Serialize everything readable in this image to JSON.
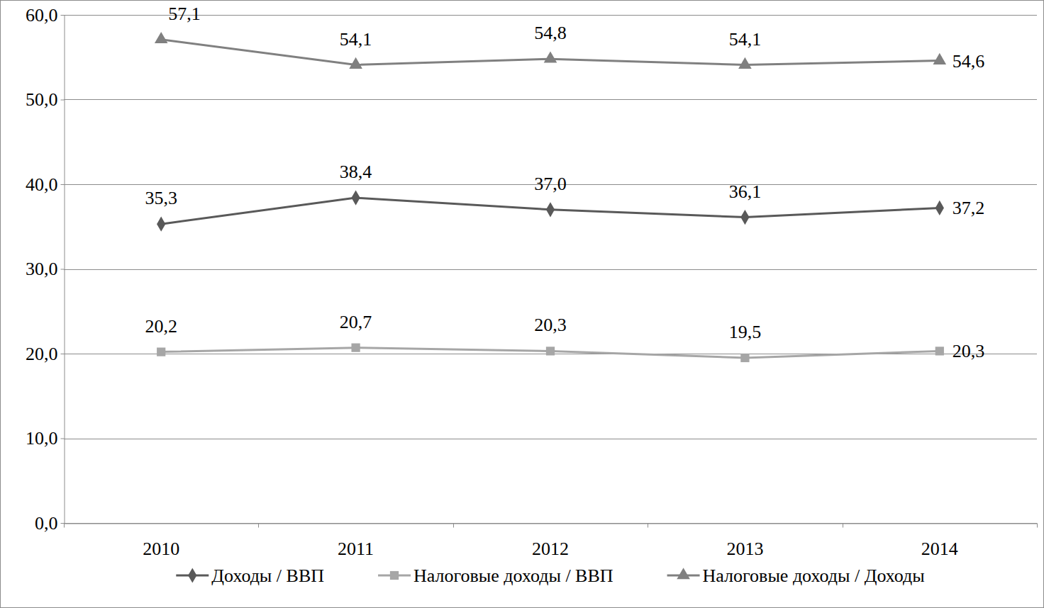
{
  "chart_data": {
    "type": "line",
    "categories": [
      "2010",
      "2011",
      "2012",
      "2013",
      "2014"
    ],
    "series": [
      {
        "name": "Доходы / ВВП",
        "color": "#595959",
        "marker": "diamond",
        "values": [
          35.3,
          38.4,
          37.0,
          36.1,
          37.2
        ],
        "value_labels": [
          "35,3",
          "38,4",
          "37,0",
          "36,1",
          "37,2"
        ]
      },
      {
        "name": "Налоговые доходы / ВВП",
        "color": "#a6a6a6",
        "marker": "square",
        "values": [
          20.2,
          20.7,
          20.3,
          19.5,
          20.3
        ],
        "value_labels": [
          "20,2",
          "20,7",
          "20,3",
          "19,5",
          "20,3"
        ]
      },
      {
        "name": "Налоговые доходы / Доходы",
        "color": "#808080",
        "marker": "triangle",
        "values": [
          57.1,
          54.1,
          54.8,
          54.1,
          54.6
        ],
        "value_labels": [
          "57,1",
          "54,1",
          "54,8",
          "54,1",
          "54,6"
        ]
      }
    ],
    "ylim": [
      0,
      60
    ],
    "yticks": [
      {
        "value": 0,
        "label": "0,0"
      },
      {
        "value": 10,
        "label": "10,0"
      },
      {
        "value": 20,
        "label": "20,0"
      },
      {
        "value": 30,
        "label": "30,0"
      },
      {
        "value": 40,
        "label": "40,0"
      },
      {
        "value": 50,
        "label": "50,0"
      },
      {
        "value": 60,
        "label": "60,0"
      }
    ],
    "grid": true,
    "legend": "bottom",
    "data_labels": true
  }
}
